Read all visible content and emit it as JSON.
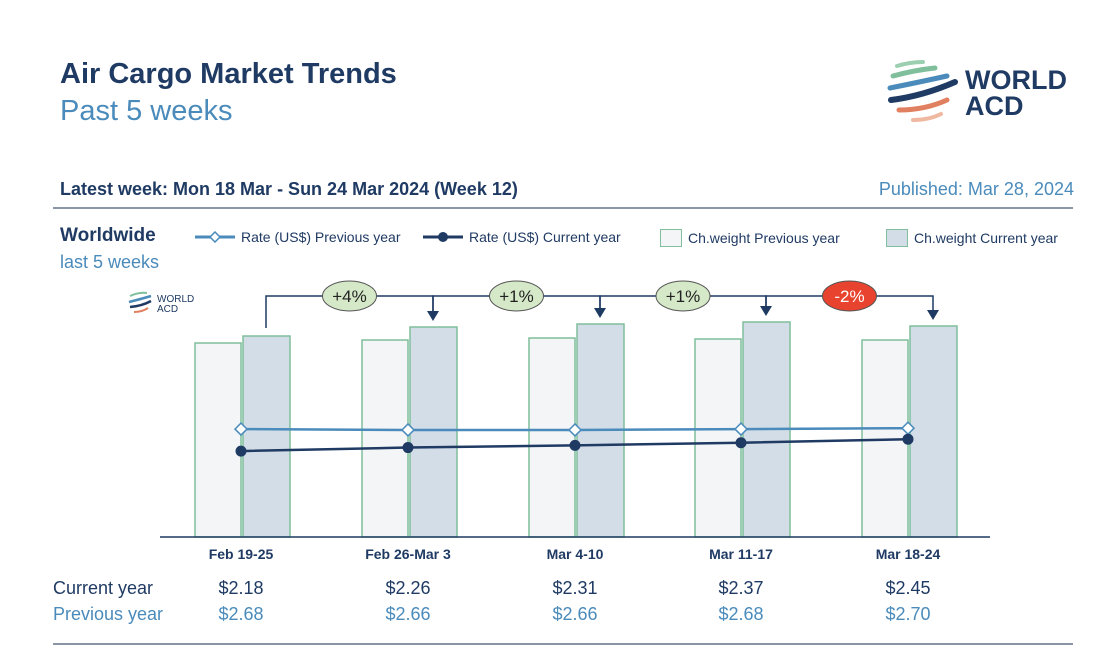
{
  "header": {
    "title": "Air Cargo Market Trends",
    "subtitle": "Past 5 weeks",
    "logo_text": "WORLD ACD"
  },
  "info": {
    "latest_week": "Latest week:  Mon 18 Mar - Sun 24 Mar 2024 (Week 12)",
    "published": "Published: Mar 28, 2024"
  },
  "section": {
    "region": "Worldwide",
    "period": "last 5 weeks"
  },
  "colors": {
    "navy": "#1f3a63",
    "light_blue": "#4a8bbb",
    "bar_border": "#7fbf9c",
    "bar_current_fill": "#d3dde8",
    "bar_prev_fill": "#f3f5f7",
    "badge_up": "#d5e8c8",
    "badge_down": "#e8432e"
  },
  "chart_data": {
    "type": "bar+line",
    "categories": [
      "Feb 19-25",
      "Feb 26-Mar 3",
      "Mar 4-10",
      "Mar 11-17",
      "Mar 18-24"
    ],
    "legend": [
      "Rate (US$) Previous year",
      "Rate (US$) Current year",
      "Ch.weight Previous year",
      "Ch.weight Current year"
    ],
    "legend_placement": "top",
    "bars": [
      {
        "name": "Ch.weight Previous year",
        "values": [
          97,
          98.5,
          99.5,
          99,
          98.5
        ]
      },
      {
        "name": "Ch.weight Current year",
        "values": [
          100.5,
          105,
          106.5,
          107.5,
          105.5
        ]
      }
    ],
    "lines": [
      {
        "name": "Rate (US$) Previous year",
        "values": [
          2.68,
          2.66,
          2.66,
          2.68,
          2.7
        ]
      },
      {
        "name": "Rate (US$) Current year",
        "values": [
          2.18,
          2.26,
          2.31,
          2.37,
          2.45
        ]
      }
    ],
    "week_changes": [
      "+4%",
      "+1%",
      "+1%",
      "-2%"
    ],
    "table": {
      "current_label": "Current year",
      "previous_label": "Previous year",
      "current": [
        "$2.18",
        "$2.26",
        "$2.31",
        "$2.37",
        "$2.45"
      ],
      "previous": [
        "$2.68",
        "$2.66",
        "$2.66",
        "$2.68",
        "$2.70"
      ]
    }
  }
}
